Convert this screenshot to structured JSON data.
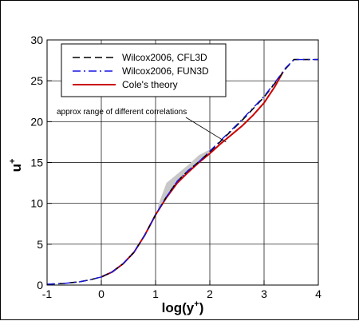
{
  "chart_data": {
    "type": "line",
    "xlabel": "log(y",
    "xlabel_sup": "+",
    "xlabel_close": ")",
    "ylabel": "u",
    "ylabel_sup": "+",
    "xlim": [
      -1,
      4
    ],
    "ylim": [
      0,
      30
    ],
    "xticks": [
      "-1",
      "0",
      "1",
      "2",
      "3",
      "4"
    ],
    "yticks": [
      "0",
      "5",
      "10",
      "15",
      "20",
      "25",
      "30"
    ],
    "grid": true,
    "legend_position": "top-left",
    "series": [
      {
        "name": "Wilcox2006, CFL3D",
        "color": "#000000",
        "style": "dashed",
        "x": [
          -1,
          -0.7,
          -0.4,
          -0.2,
          0.0,
          0.2,
          0.4,
          0.6,
          0.8,
          1.0,
          1.2,
          1.4,
          1.6,
          1.8,
          2.0,
          2.2,
          2.4,
          2.6,
          2.8,
          3.0,
          3.2,
          3.4,
          3.55,
          4.0
        ],
        "y": [
          0.1,
          0.2,
          0.4,
          0.65,
          1.0,
          1.6,
          2.6,
          4.0,
          6.1,
          8.6,
          10.8,
          12.7,
          14.0,
          15.1,
          16.3,
          17.6,
          18.9,
          20.2,
          21.6,
          23.0,
          24.7,
          26.5,
          27.6,
          27.6
        ]
      },
      {
        "name": "Wilcox2006, FUN3D",
        "color": "#1515e0",
        "style": "dashdot",
        "x": [
          -1,
          -0.7,
          -0.4,
          -0.2,
          0.0,
          0.2,
          0.4,
          0.6,
          0.8,
          1.0,
          1.2,
          1.4,
          1.6,
          1.8,
          2.0,
          2.2,
          2.4,
          2.6,
          2.8,
          3.0,
          3.2,
          3.4,
          3.55,
          4.0
        ],
        "y": [
          0.1,
          0.2,
          0.4,
          0.65,
          1.0,
          1.6,
          2.6,
          4.0,
          6.1,
          8.6,
          10.8,
          12.7,
          14.0,
          15.1,
          16.4,
          17.7,
          19.0,
          20.3,
          21.7,
          23.1,
          24.8,
          26.6,
          27.6,
          27.6
        ]
      },
      {
        "name": "Cole's theory",
        "color": "#cc0000",
        "style": "solid",
        "x": [
          0.0,
          0.2,
          0.4,
          0.6,
          0.8,
          1.0,
          1.2,
          1.4,
          1.6,
          1.8,
          2.0,
          2.2,
          2.4,
          2.6,
          2.8,
          3.0,
          3.2,
          3.35
        ],
        "y": [
          1.0,
          1.6,
          2.6,
          4.0,
          6.1,
          8.6,
          10.7,
          12.5,
          13.8,
          15.0,
          16.1,
          17.3,
          18.4,
          19.5,
          20.8,
          22.3,
          24.3,
          26.1
        ]
      }
    ],
    "band": {
      "label": "approx range of different correlations",
      "x": [
        1.05,
        1.2,
        1.4,
        1.6,
        1.8,
        2.0
      ],
      "y_low": [
        9.0,
        11.0,
        12.4,
        13.7,
        15.0,
        16.2
      ],
      "y_high": [
        9.8,
        12.5,
        13.6,
        14.7,
        15.9,
        16.6
      ],
      "color": "#c8c8c8"
    },
    "annotation": {
      "text": "approx range of different correlations",
      "arrow_to": [
        2.3,
        17.5
      ]
    }
  }
}
